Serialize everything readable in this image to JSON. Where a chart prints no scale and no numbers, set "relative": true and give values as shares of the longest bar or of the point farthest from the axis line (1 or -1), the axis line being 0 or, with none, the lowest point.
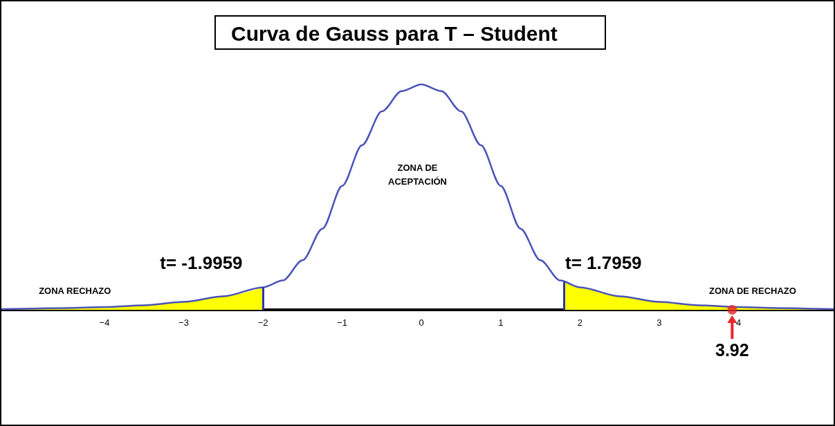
{
  "chart_data": {
    "type": "line",
    "title": "Curva de Gauss para T – Student",
    "relative": true,
    "xlim": [
      -5.3,
      5.2
    ],
    "xticks": [
      {
        "value": -4,
        "label": "−4"
      },
      {
        "value": -3,
        "label": "−3"
      },
      {
        "value": -2,
        "label": "−2"
      },
      {
        "value": -1,
        "label": "−1"
      },
      0,
      1,
      2,
      3,
      4
    ],
    "series": [
      {
        "type": "area",
        "color": "#ffff00",
        "x": [
          -5.3,
          -4.5,
          -4,
          -3.5,
          -3,
          -2.5,
          -1.9959
        ],
        "values": [
          0.003,
          0.008,
          0.012,
          0.02,
          0.035,
          0.06,
          0.1
        ]
      },
      {
        "type": "area",
        "color": "#ffff00",
        "x": [
          1.7959,
          2,
          2.5,
          3,
          3.5,
          4,
          4.5,
          5.2
        ],
        "values": [
          0.13,
          0.1,
          0.06,
          0.035,
          0.02,
          0.012,
          0.008,
          0.003
        ]
      },
      {
        "color": "#4a52b8",
        "x": [
          -5.3,
          -4.5,
          -4,
          -3.5,
          -3,
          -2.5,
          -2,
          -1.75,
          -1.5,
          -1.25,
          -1,
          -0.75,
          -0.5,
          -0.25,
          0,
          0.25,
          0.5,
          0.75,
          1,
          1.25,
          1.5,
          1.75,
          2,
          2.5,
          3,
          3.5,
          4,
          4.5,
          5.2
        ],
        "values": [
          0.003,
          0.008,
          0.012,
          0.02,
          0.035,
          0.06,
          0.1,
          0.13,
          0.22,
          0.36,
          0.55,
          0.73,
          0.88,
          0.97,
          1,
          0.97,
          0.88,
          0.73,
          0.55,
          0.36,
          0.22,
          0.13,
          0.1,
          0.06,
          0.035,
          0.02,
          0.012,
          0.008,
          0.003
        ]
      },
      {
        "type": "scatter",
        "color": "#e8262a",
        "x": [
          3.92
        ],
        "values": [
          0
        ],
        "marker": "circle"
      }
    ],
    "ref_lines": [
      {
        "axis": "x",
        "value": -1.9959,
        "label": "t= -1.9959",
        "color": "#2b35b5"
      },
      {
        "axis": "x",
        "value": 1.7959,
        "label": "t= 1.7959",
        "color": "#2b35b5"
      }
    ],
    "annotations": [
      "ZONA DE\nACEPTACIÓN",
      "ZONA RECHAZO",
      "ZONA DE RECHAZO",
      {
        "text": "3.92",
        "x": 3.92,
        "y": 0
      }
    ]
  }
}
